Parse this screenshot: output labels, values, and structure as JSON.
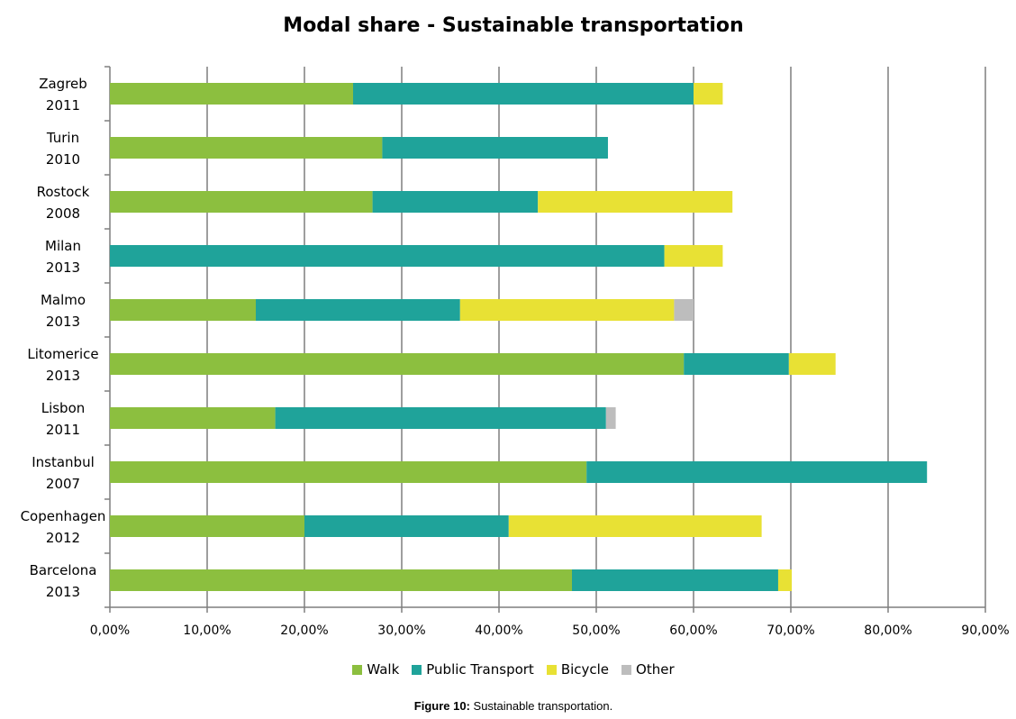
{
  "chart_data": {
    "type": "bar",
    "orientation": "horizontal",
    "stacked": true,
    "title": "Modal share - Sustainable transportation",
    "categories": [
      [
        "Zagreb",
        "2011"
      ],
      [
        "Turin",
        "2010"
      ],
      [
        "Rostock",
        "2008"
      ],
      [
        "Milan",
        "2013"
      ],
      [
        "Malmo",
        "2013"
      ],
      [
        "Litomerice",
        "2013"
      ],
      [
        "Lisbon",
        "2011"
      ],
      [
        "Instanbul",
        "2007"
      ],
      [
        "Copenhagen",
        "2012"
      ],
      [
        "Barcelona",
        "2013"
      ]
    ],
    "series": [
      {
        "name": "Walk",
        "color": "#8cbf3f",
        "values": [
          25,
          28,
          27,
          0,
          15,
          59,
          17,
          49,
          20,
          47.5
        ]
      },
      {
        "name": "Public Transport",
        "color": "#1fa39a",
        "values": [
          35,
          23.2,
          17,
          57,
          21,
          10.8,
          34,
          35,
          21,
          21.2
        ]
      },
      {
        "name": "Bicycle",
        "color": "#e8e134",
        "values": [
          3,
          0,
          20,
          6,
          22,
          4.8,
          0,
          0,
          26,
          1.4
        ]
      },
      {
        "name": "Other",
        "color": "#bdbdbd",
        "values": [
          0,
          0,
          0,
          0,
          2,
          0,
          1,
          0,
          0,
          0
        ]
      }
    ],
    "xlim": [
      0,
      90
    ],
    "xticks": [
      "0,00%",
      "10,00%",
      "20,00%",
      "30,00%",
      "40,00%",
      "50,00%",
      "60,00%",
      "70,00%",
      "80,00%",
      "90,00%"
    ],
    "grid": "vertical",
    "legend_position": "bottom"
  },
  "caption": {
    "label": "Figure 10:",
    "text": " Sustainable transportation."
  }
}
